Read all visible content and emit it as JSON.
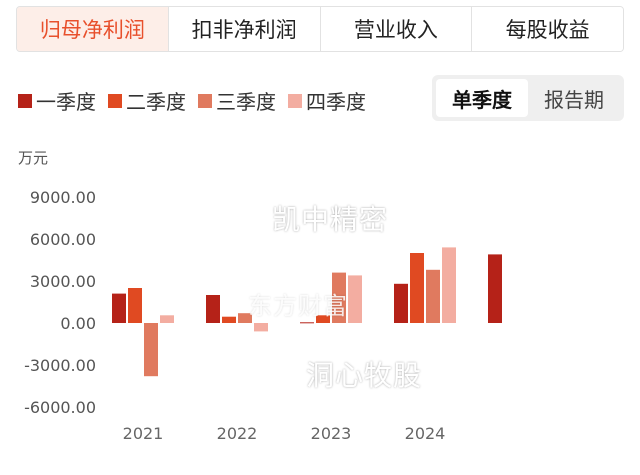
{
  "tabs": [
    {
      "label": "归母净利润",
      "active": true
    },
    {
      "label": "扣非净利润",
      "active": false
    },
    {
      "label": "营业收入",
      "active": false
    },
    {
      "label": "每股收益",
      "active": false
    }
  ],
  "toggle": [
    {
      "label": "单季度",
      "active": true
    },
    {
      "label": "报告期",
      "active": false
    }
  ],
  "unit": "万元",
  "watermarks": [
    "凯中精密",
    "洞心牧股",
    "东方财富"
  ],
  "chart_data": {
    "type": "bar",
    "categories": [
      "2021",
      "2022",
      "2023",
      "2024",
      ""
    ],
    "series": [
      {
        "name": "一季度",
        "color": "#b52218",
        "values": [
          2100,
          2000,
          50,
          2800,
          4900
        ]
      },
      {
        "name": "二季度",
        "color": "#e04a22",
        "values": [
          2500,
          450,
          550,
          5000,
          null
        ]
      },
      {
        "name": "三季度",
        "color": "#e07a5f",
        "values": [
          -3800,
          700,
          3600,
          3800,
          null
        ]
      },
      {
        "name": "四季度",
        "color": "#f3ada1",
        "values": [
          550,
          -600,
          3400,
          5400,
          null
        ]
      }
    ],
    "yticks": [
      "9000.00",
      "6000.00",
      "3000.00",
      "0.00",
      "-3000.00",
      "-6000.00"
    ],
    "ylim": [
      -6000,
      9000
    ],
    "grid": false,
    "legend": "top-left"
  }
}
